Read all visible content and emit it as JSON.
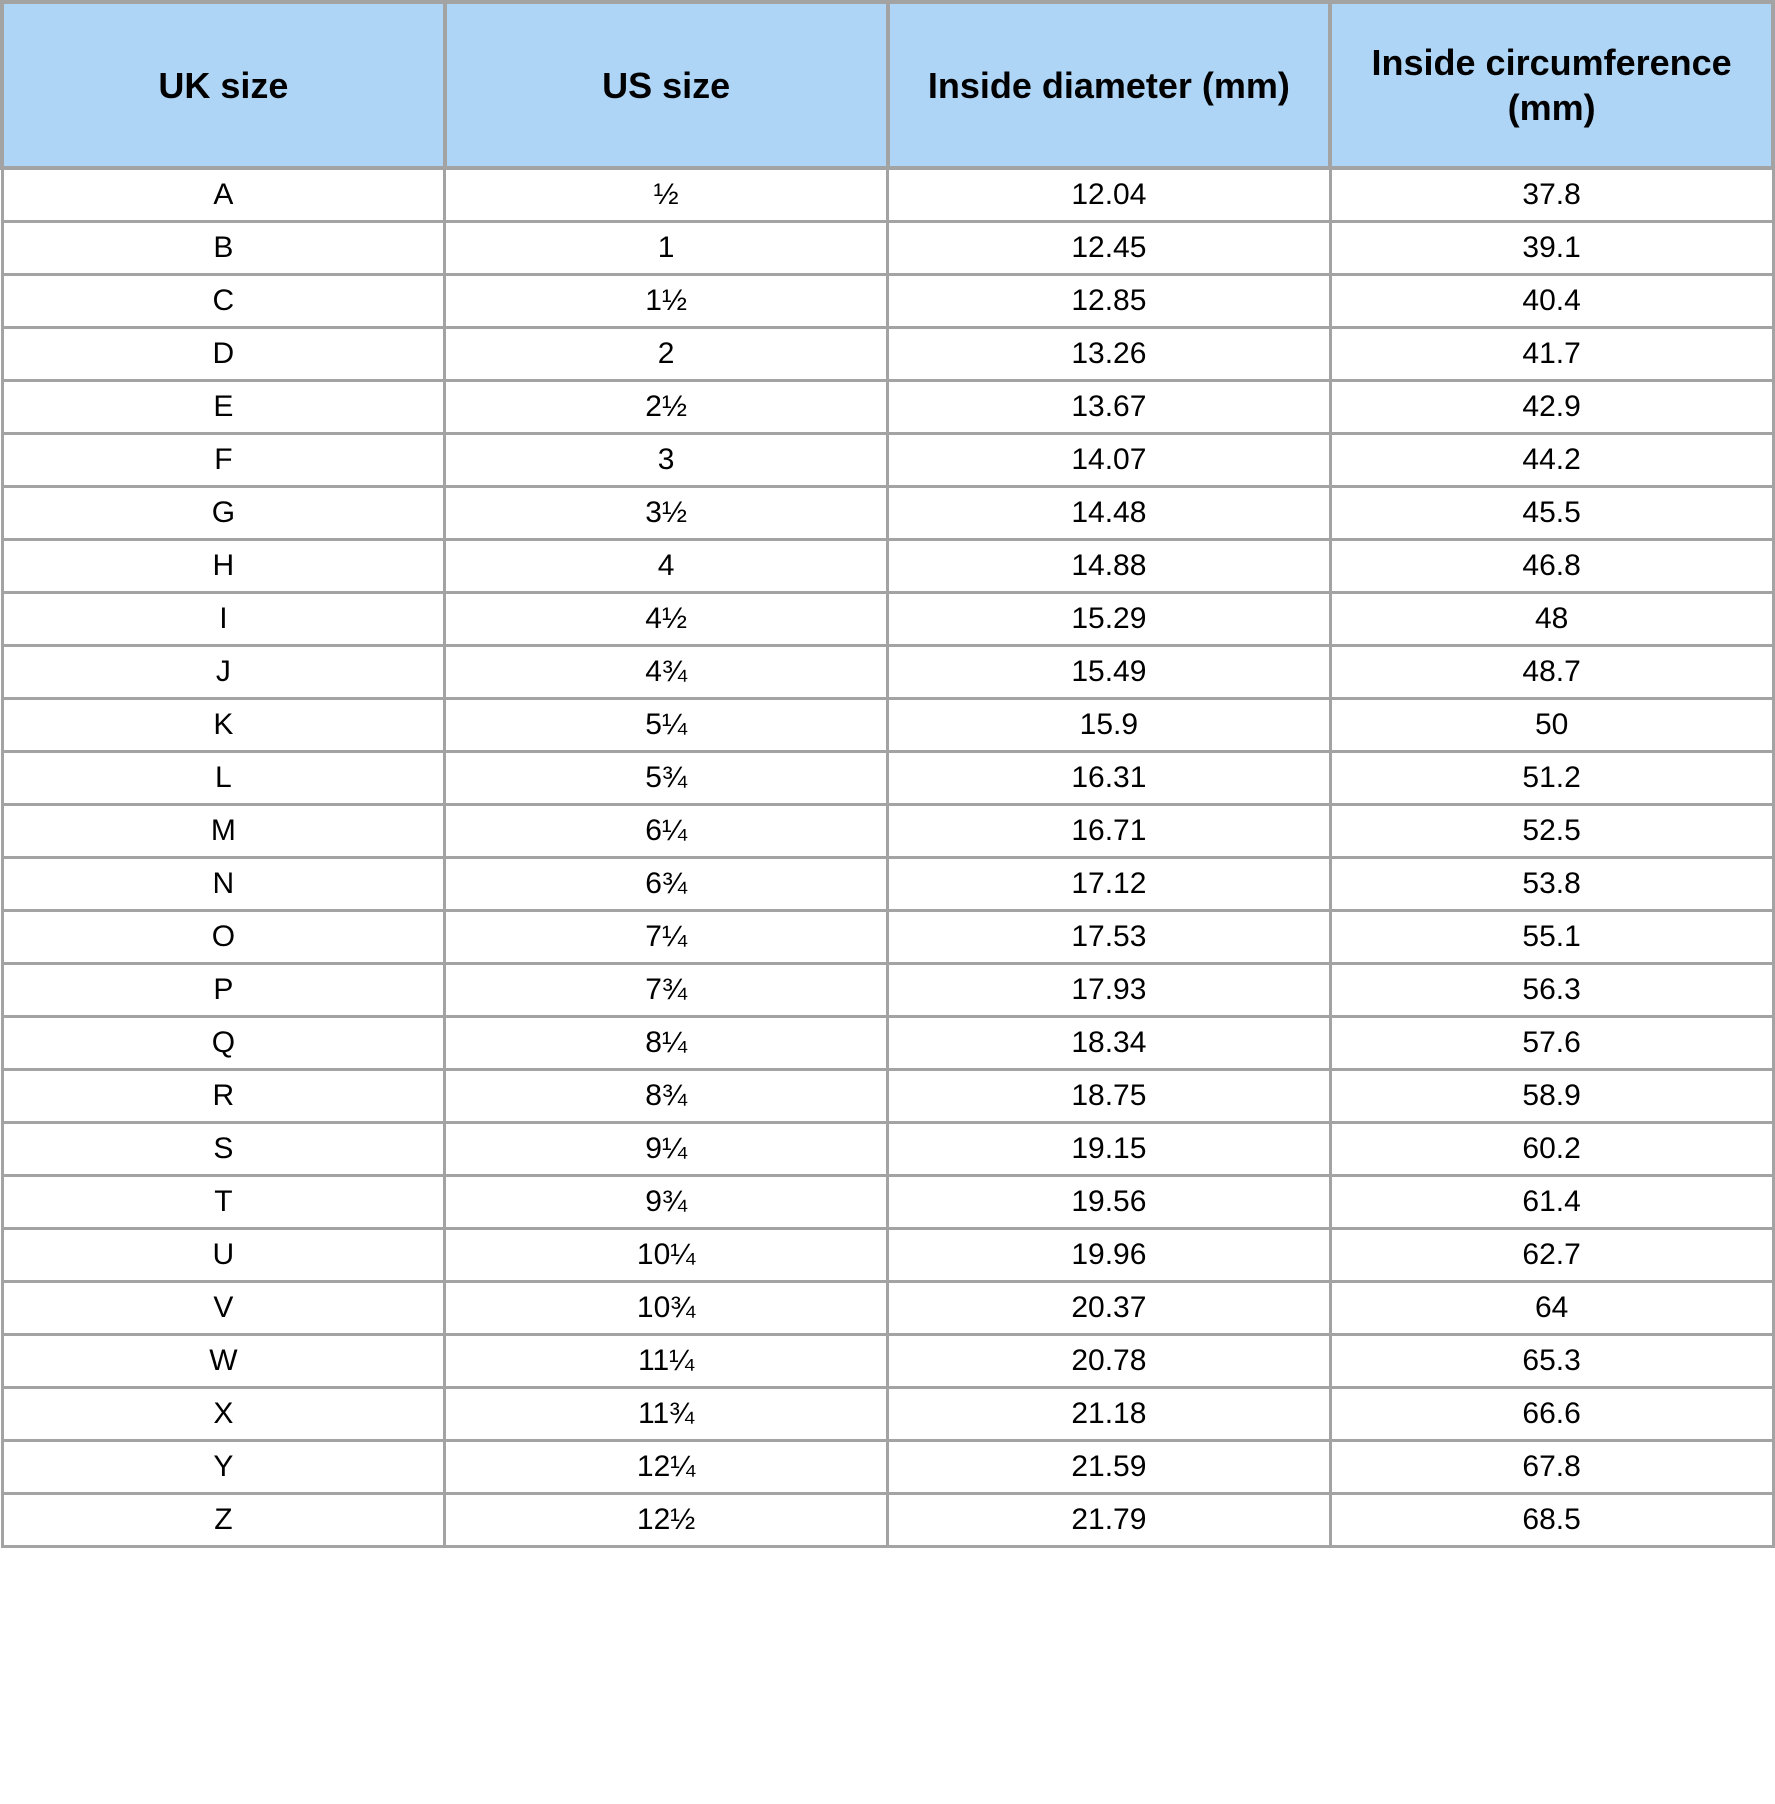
{
  "table": {
    "header_bg": "#aed5f6",
    "border_color": "#a3a3a3",
    "background_color": "#ffffff",
    "header_fontsize": 36,
    "cell_fontsize": 30,
    "columns": [
      "UK size",
      "US size",
      "Inside diameter (mm)",
      "Inside circumference (mm)"
    ],
    "rows": [
      [
        "A",
        "½",
        "12.04",
        "37.8"
      ],
      [
        "B",
        "1",
        "12.45",
        "39.1"
      ],
      [
        "C",
        "1½",
        "12.85",
        "40.4"
      ],
      [
        "D",
        "2",
        "13.26",
        "41.7"
      ],
      [
        "E",
        "2½",
        "13.67",
        "42.9"
      ],
      [
        "F",
        "3",
        "14.07",
        "44.2"
      ],
      [
        "G",
        "3½",
        "14.48",
        "45.5"
      ],
      [
        "H",
        "4",
        "14.88",
        "46.8"
      ],
      [
        "I",
        "4½",
        "15.29",
        "48"
      ],
      [
        "J",
        "4¾",
        "15.49",
        "48.7"
      ],
      [
        "K",
        "5¼",
        "15.9",
        "50"
      ],
      [
        "L",
        "5¾",
        "16.31",
        "51.2"
      ],
      [
        "M",
        "6¼",
        "16.71",
        "52.5"
      ],
      [
        "N",
        "6¾",
        "17.12",
        "53.8"
      ],
      [
        "O",
        "7¼",
        "17.53",
        "55.1"
      ],
      [
        "P",
        "7¾",
        "17.93",
        "56.3"
      ],
      [
        "Q",
        "8¼",
        "18.34",
        "57.6"
      ],
      [
        "R",
        "8¾",
        "18.75",
        "58.9"
      ],
      [
        "S",
        "9¼",
        "19.15",
        "60.2"
      ],
      [
        "T",
        "9¾",
        "19.56",
        "61.4"
      ],
      [
        "U",
        "10¼",
        "19.96",
        "62.7"
      ],
      [
        "V",
        "10¾",
        "20.37",
        "64"
      ],
      [
        "W",
        "11¼",
        "20.78",
        "65.3"
      ],
      [
        "X",
        "11¾",
        "21.18",
        "66.6"
      ],
      [
        "Y",
        "12¼",
        "21.59",
        "67.8"
      ],
      [
        "Z",
        "12½",
        "21.79",
        "68.5"
      ]
    ]
  }
}
